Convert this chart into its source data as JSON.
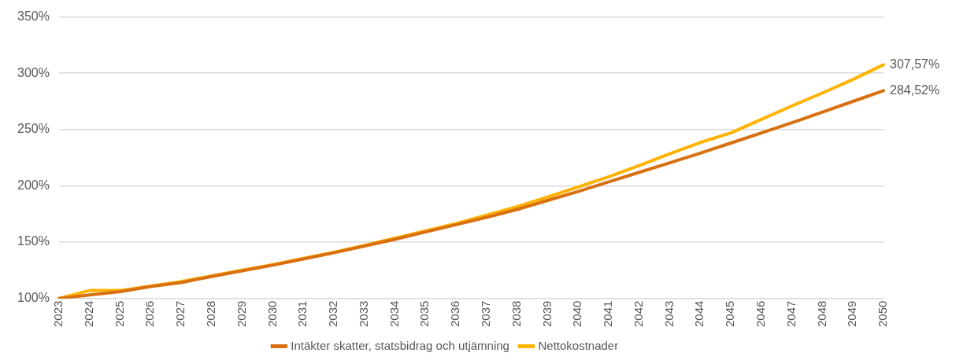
{
  "chart_data": {
    "type": "line",
    "categories": [
      "2023",
      "2024",
      "2025",
      "2026",
      "2027",
      "2028",
      "2029",
      "2030",
      "2031",
      "2032",
      "2033",
      "2034",
      "2035",
      "2036",
      "2037",
      "2038",
      "2039",
      "2040",
      "2041",
      "2042",
      "2043",
      "2044",
      "2045",
      "2046",
      "2047",
      "2048",
      "2049",
      "2050"
    ],
    "series": [
      {
        "name": "Intäkter skatter, statsbidrag och utjämning",
        "color": "#d9700f",
        "values": [
          100,
          103,
          106,
          110.5,
          114,
          119.5,
          124.5,
          129.5,
          135,
          140.5,
          146.5,
          152.5,
          159,
          165.5,
          172,
          179,
          187,
          195,
          203.5,
          212,
          220.5,
          229,
          238,
          247,
          256,
          265.5,
          275,
          284.52
        ],
        "value_labels": [
          null,
          null,
          null,
          null,
          null,
          null,
          null,
          null,
          null,
          null,
          null,
          null,
          null,
          null,
          null,
          null,
          null,
          null,
          null,
          null,
          null,
          null,
          null,
          null,
          null,
          null,
          null,
          "284,52%"
        ]
      },
      {
        "name": "Nettokostnader",
        "color": "#ffb300",
        "values": [
          100,
          107,
          107,
          111,
          115,
          120,
          125,
          130,
          135.5,
          141,
          147,
          153.5,
          160,
          166.5,
          174,
          181.5,
          190,
          199,
          208,
          218,
          228.5,
          238.5,
          247,
          259,
          271,
          282.5,
          294.5,
          307.57
        ],
        "value_labels": [
          null,
          null,
          null,
          null,
          null,
          null,
          null,
          null,
          null,
          null,
          null,
          null,
          null,
          null,
          null,
          null,
          null,
          null,
          null,
          null,
          null,
          null,
          null,
          null,
          null,
          null,
          null,
          "307,57%"
        ]
      }
    ],
    "ylim": [
      100,
      350
    ],
    "yticks": [
      {
        "value": 100,
        "label": "100%"
      },
      {
        "value": 150,
        "label": "150%"
      },
      {
        "value": 200,
        "label": "200%"
      },
      {
        "value": 250,
        "label": "250%"
      },
      {
        "value": 300,
        "label": "300%"
      },
      {
        "value": 350,
        "label": "350%"
      }
    ],
    "grid": "y",
    "legend": "bottom",
    "marker": "none",
    "line_style": "solid"
  }
}
